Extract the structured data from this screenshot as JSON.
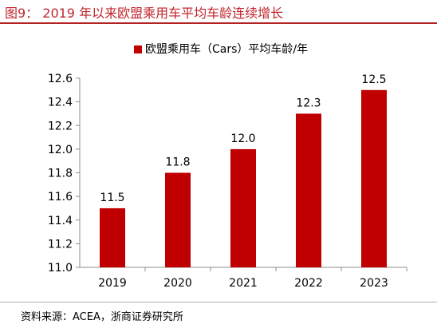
{
  "figure": {
    "title": "图9：  2019 年以来欧盟乘用车平均车龄连续增长",
    "source": "资料来源：ACEA，浙商证券研究所"
  },
  "chart_data": {
    "type": "bar",
    "categories": [
      "2019",
      "2020",
      "2021",
      "2022",
      "2023"
    ],
    "series": [
      {
        "name": "欧盟乘用车（Cars）平均车龄/年",
        "values": [
          11.5,
          11.8,
          12.0,
          12.3,
          12.5
        ]
      }
    ],
    "data_labels": [
      "11.5",
      "11.8",
      "12.0",
      "12.3",
      "12.5"
    ],
    "ylim": [
      11.0,
      12.6
    ],
    "yticks": [
      "11.0",
      "11.2",
      "11.4",
      "11.6",
      "11.8",
      "12.0",
      "12.2",
      "12.4",
      "12.6"
    ],
    "grid": false,
    "legend_position": "top",
    "colors": {
      "bar": "#c00000",
      "axis": "#8c8c8c",
      "title": "#c0262d"
    }
  }
}
